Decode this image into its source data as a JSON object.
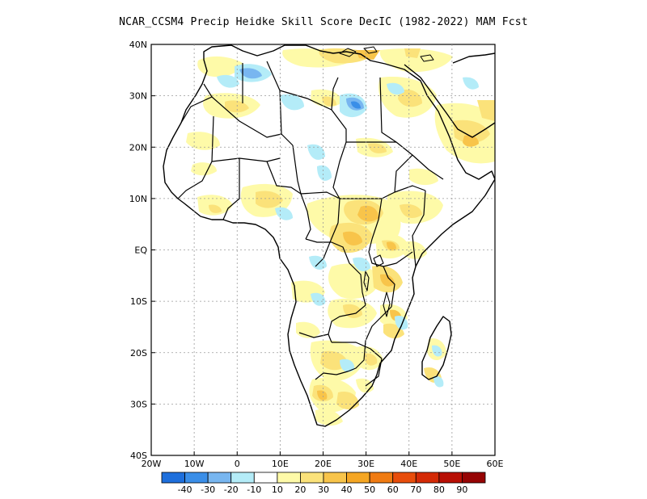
{
  "title": "NCAR_CCSM4 Precip Heidke Skill Score DecIC (1982-2022) MAM Fcst",
  "axes": {
    "lat_labels": [
      "40N",
      "30N",
      "20N",
      "10N",
      "EQ",
      "10S",
      "20S",
      "30S",
      "40S"
    ],
    "lat_values": [
      40,
      30,
      20,
      10,
      0,
      -10,
      -20,
      -30,
      -40
    ],
    "lon_labels": [
      "20W",
      "10W",
      "0",
      "10E",
      "20E",
      "30E",
      "40E",
      "50E",
      "60E"
    ],
    "lon_values": [
      -20,
      -10,
      0,
      10,
      20,
      30,
      40,
      50,
      60
    ],
    "lat_range": [
      -40,
      40
    ],
    "lon_range": [
      -20,
      60
    ],
    "grid": "dotted"
  },
  "colorbar": {
    "labels": [
      "-40",
      "-30",
      "-20",
      "-10",
      "10",
      "20",
      "30",
      "40",
      "50",
      "60",
      "70",
      "80",
      "90"
    ],
    "colors": [
      "#1e6fdc",
      "#3a8ee8",
      "#78b6f0",
      "#b4ecf8",
      "#ffffff",
      "#fefaa8",
      "#fbe27a",
      "#f8c44a",
      "#f5a623",
      "#f07b12",
      "#e84d0b",
      "#d42a06",
      "#b80f04",
      "#960404"
    ]
  },
  "map_style": {
    "coastline_color": "#000000",
    "grid_color": "#9a9a9a",
    "positive_tones": [
      "#fefaa8",
      "#fbe27a",
      "#f8c44a",
      "#f5a623"
    ],
    "negative_tones": [
      "#b4ecf8",
      "#78b6f0",
      "#3a8ee8"
    ]
  }
}
